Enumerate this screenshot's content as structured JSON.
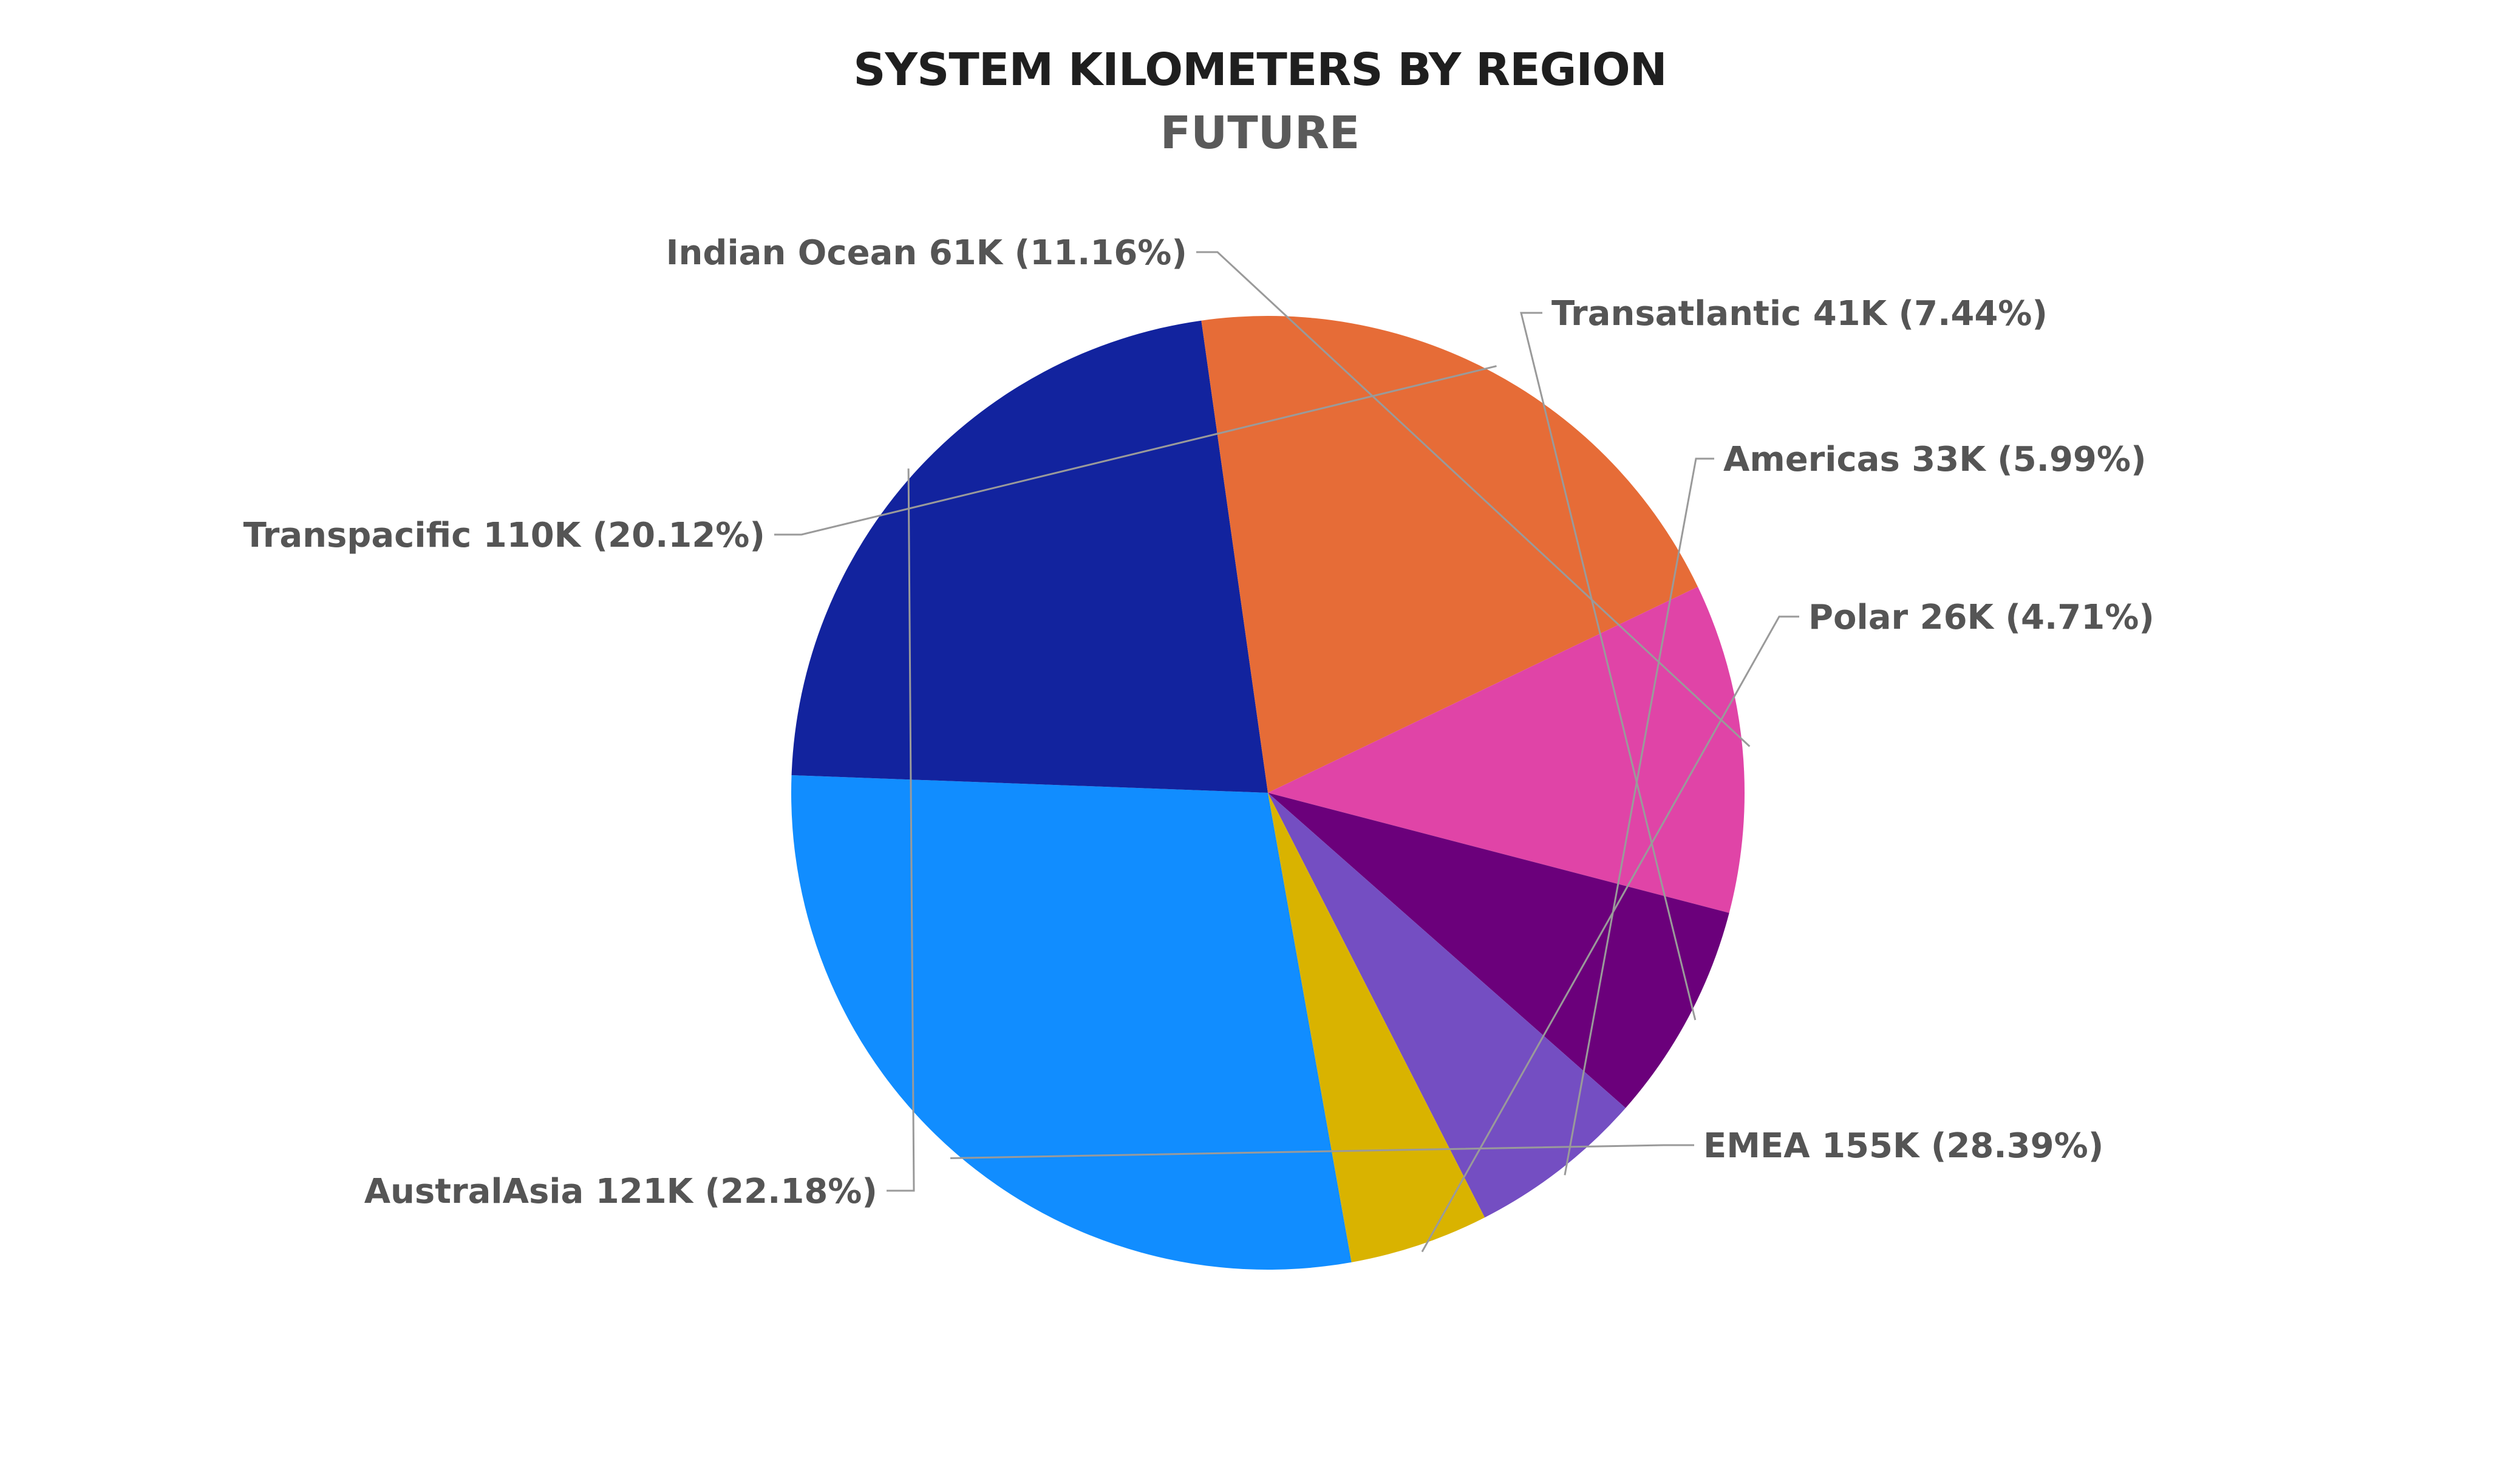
{
  "chart_data": {
    "type": "pie",
    "title": "SYSTEM KILOMETERS BY REGION",
    "subtitle": "FUTURE",
    "slices": [
      {
        "label": "EMEA",
        "value_label": "155K",
        "percent": 28.39,
        "color": "#118dff"
      },
      {
        "label": "AustralAsia",
        "value_label": "121K",
        "percent": 22.18,
        "color": "#12239e"
      },
      {
        "label": "Transpacific",
        "value_label": "110K",
        "percent": 20.12,
        "color": "#e66c37"
      },
      {
        "label": "Indian Ocean",
        "value_label": "61K",
        "percent": 11.16,
        "color": "#e044a7"
      },
      {
        "label": "Transatlantic",
        "value_label": "41K",
        "percent": 7.44,
        "color": "#6b007b"
      },
      {
        "label": "Americas",
        "value_label": "33K",
        "percent": 5.99,
        "color": "#744ec2"
      },
      {
        "label": "Polar",
        "value_label": "26K",
        "percent": 4.71,
        "color": "#d9b300"
      }
    ],
    "start_angle_deg": 79.9,
    "direction": "clockwise",
    "legend": "none",
    "data_labels": "outside with leader lines"
  }
}
